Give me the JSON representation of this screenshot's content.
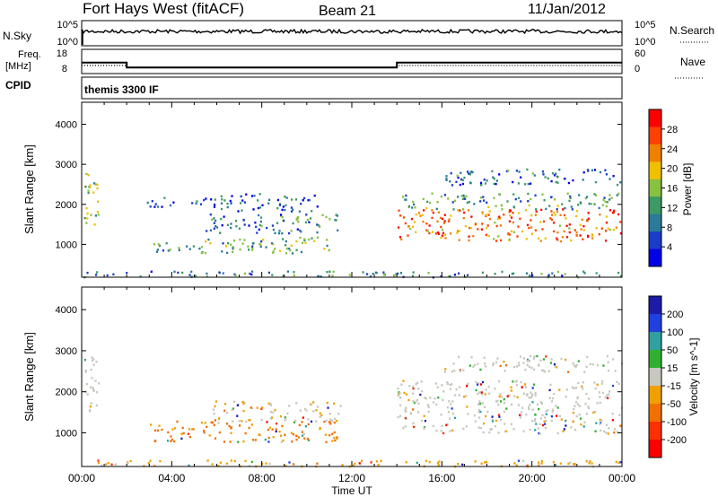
{
  "header": {
    "title": "Fort Hays West (fitACF)",
    "beam": "Beam 21",
    "date": "11/Jan/2012"
  },
  "colors": {
    "power_scale": [
      "#0000e6",
      "#1a3cc8",
      "#2a7a9a",
      "#3c9a64",
      "#88c040",
      "#f0c000",
      "#f08000",
      "#ff4000",
      "#ff0000"
    ],
    "velocity_scale": [
      "#1c1ca8",
      "#2040e0",
      "#30a0a0",
      "#30b030",
      "#c8c8c0",
      "#f0a000",
      "#f07000",
      "#ff3000",
      "#ff0000"
    ]
  },
  "chart_data": [
    {
      "type": "line",
      "name": "sky-noise-panel",
      "left_label": "N.Sky",
      "right_label": "N.Search",
      "left_ticks": [
        "10^5",
        "10^0"
      ],
      "right_ticks": [
        "10^5",
        "10^0"
      ]
    },
    {
      "type": "line",
      "name": "frequency-nave-panel",
      "left_label_top": "Freq.",
      "left_label_unit": "[MHz]",
      "left_ticks": [
        "18",
        "8"
      ],
      "right_label": "Nave",
      "right_ticks": [
        "60",
        "0"
      ],
      "series": [
        {
          "name": "Freq.",
          "x": [
            0,
            2,
            2,
            14,
            14,
            24
          ],
          "values": [
            12.5,
            12.5,
            10.5,
            10.5,
            12.5,
            12.5
          ]
        },
        {
          "name": "Nave",
          "x": [
            0,
            2,
            2,
            14,
            14,
            24
          ],
          "values": [
            20,
            20,
            16,
            16,
            20,
            20
          ]
        }
      ]
    },
    {
      "type": "table",
      "name": "cpid-panel",
      "label": "CPID",
      "text": "themis 3300 IF"
    },
    {
      "type": "heatmap",
      "name": "power-panel",
      "ylabel": "Slant Range [km]",
      "yticks": [
        "1000",
        "2000",
        "3000",
        "4000"
      ],
      "ylim": [
        180,
        4550
      ],
      "xlim": [
        0,
        24
      ],
      "colorbar_label": "Power [dB]",
      "colorbar_ticks": [
        "4",
        "8",
        "12",
        "16",
        "20",
        "24",
        "28"
      ],
      "regions": [
        {
          "t": [
            0.1,
            0.8
          ],
          "r": [
            1500,
            2900
          ],
          "level": 0.45
        },
        {
          "t": [
            2.8,
            6.0
          ],
          "r": [
            1950,
            2200
          ],
          "level": 0.2
        },
        {
          "t": [
            3.0,
            11.0
          ],
          "r": [
            800,
            1200
          ],
          "level": 0.4
        },
        {
          "t": [
            5.5,
            11.5
          ],
          "r": [
            1300,
            1800
          ],
          "level": 0.3
        },
        {
          "t": [
            6.0,
            10.5
          ],
          "r": [
            1850,
            2300
          ],
          "level": 0.2
        },
        {
          "t": [
            14.0,
            24.0
          ],
          "r": [
            1100,
            1900
          ],
          "level": 0.75
        },
        {
          "t": [
            14.0,
            24.0
          ],
          "r": [
            1900,
            2300
          ],
          "level": 0.35
        },
        {
          "t": [
            16.0,
            24.0
          ],
          "r": [
            2500,
            2900
          ],
          "level": 0.25
        },
        {
          "t": [
            0.0,
            24.0
          ],
          "r": [
            200,
            350
          ],
          "level": 0.3
        }
      ]
    },
    {
      "type": "heatmap",
      "name": "velocity-panel",
      "ylabel": "Slant Range [km]",
      "yticks": [
        "1000",
        "2000",
        "3000",
        "4000"
      ],
      "ylim": [
        180,
        4550
      ],
      "xlim": [
        0,
        24
      ],
      "xlabel": "Time UT",
      "xticks": [
        "00:00",
        "04:00",
        "08:00",
        "12:00",
        "16:00",
        "20:00",
        "00:00"
      ],
      "colorbar_label": "Velocity [m s^-1]",
      "colorbar_ticks": [
        "200",
        "100",
        "50",
        "15",
        "-15",
        "-50",
        "-100",
        "-200"
      ],
      "regions": [
        {
          "t": [
            0.1,
            0.8
          ],
          "r": [
            1500,
            2900
          ],
          "level": 0.5
        },
        {
          "t": [
            3.0,
            11.5
          ],
          "r": [
            800,
            1300
          ],
          "level": 0.7
        },
        {
          "t": [
            5.5,
            11.5
          ],
          "r": [
            1300,
            1800
          ],
          "level": 0.55
        },
        {
          "t": [
            14.0,
            24.0
          ],
          "r": [
            1000,
            2300
          ],
          "level": 0.5
        },
        {
          "t": [
            16.0,
            24.0
          ],
          "r": [
            2500,
            2900
          ],
          "level": 0.5
        },
        {
          "t": [
            0.0,
            24.0
          ],
          "r": [
            200,
            350
          ],
          "level": 0.6
        }
      ]
    }
  ]
}
